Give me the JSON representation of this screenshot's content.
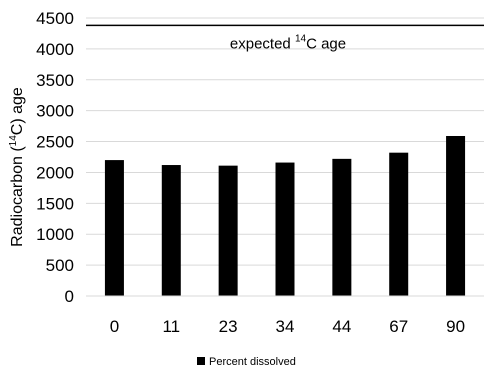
{
  "chart_data": {
    "type": "bar",
    "categories": [
      "0",
      "11",
      "23",
      "34",
      "44",
      "67",
      "90"
    ],
    "series": [
      {
        "name": "Percent dissolved",
        "values": [
          2200,
          2120,
          2110,
          2160,
          2220,
          2320,
          2590
        ],
        "color": "#000000"
      }
    ],
    "ylabel": {
      "pre": "Radiocarbon (",
      "sup": "14",
      "post": "C) age"
    },
    "ylim": [
      0,
      4500
    ],
    "yticks": [
      "0",
      "500",
      "1000",
      "1500",
      "2000",
      "2500",
      "3000",
      "3500",
      "4000",
      "4500"
    ],
    "grid": true,
    "legend_position": "bottom",
    "reference_line": {
      "value": 4380,
      "label": {
        "pre": "expected ",
        "sup": "14",
        "post": "C age"
      }
    }
  }
}
